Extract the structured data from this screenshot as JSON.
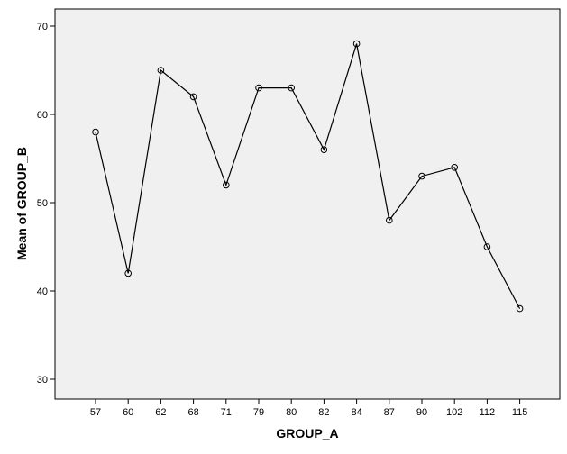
{
  "colors": {
    "plot_background": "#f0f0f0",
    "line": "#000000",
    "marker": "#000000",
    "frame": "#000000"
  },
  "chart_data": {
    "type": "line",
    "xlabel": "GROUP_A",
    "ylabel": "Mean of GROUP_B",
    "categories": [
      "57",
      "60",
      "62",
      "68",
      "71",
      "79",
      "80",
      "82",
      "84",
      "87",
      "90",
      "102",
      "112",
      "115"
    ],
    "series": [
      {
        "values": [
          58,
          42,
          65,
          62,
          52,
          63,
          63,
          56,
          68,
          48,
          53,
          54,
          45,
          38
        ],
        "marker": "open-circle"
      }
    ],
    "ylim": [
      28,
      72
    ],
    "yticks": [
      30,
      40,
      50,
      60,
      70
    ],
    "grid": false,
    "legend": "none"
  }
}
